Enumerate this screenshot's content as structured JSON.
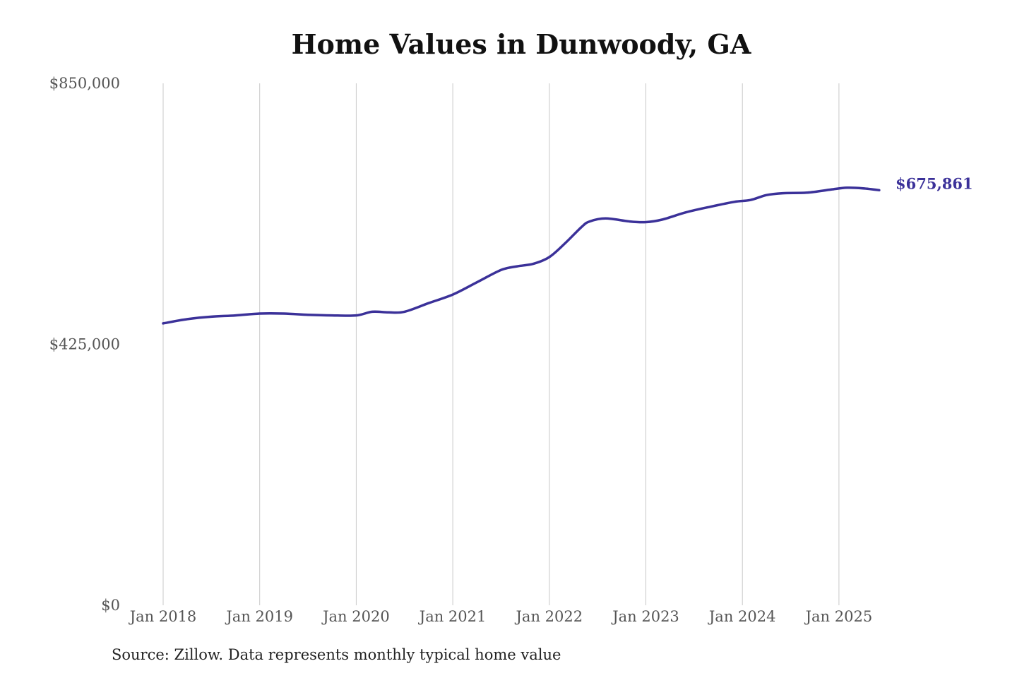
{
  "chart_data": {
    "type": "line",
    "title": "Home Values in Dunwoody, GA",
    "xlabel": "",
    "ylabel": "",
    "ylim": [
      0,
      850000
    ],
    "xlim": [
      "2018-01",
      "2025-06"
    ],
    "y_ticks": [
      {
        "value": 0,
        "label": "$0"
      },
      {
        "value": 425000,
        "label": "$425,000"
      },
      {
        "value": 850000,
        "label": "$850,000"
      }
    ],
    "x_ticks": [
      {
        "value": "2018-01",
        "label": "Jan 2018"
      },
      {
        "value": "2019-01",
        "label": "Jan 2019"
      },
      {
        "value": "2020-01",
        "label": "Jan 2020"
      },
      {
        "value": "2021-01",
        "label": "Jan 2021"
      },
      {
        "value": "2022-01",
        "label": "Jan 2022"
      },
      {
        "value": "2023-01",
        "label": "Jan 2023"
      },
      {
        "value": "2024-01",
        "label": "Jan 2024"
      },
      {
        "value": "2025-01",
        "label": "Jan 2025"
      }
    ],
    "grid": {
      "vertical": true,
      "horizontal": false
    },
    "line_color": "#3b3199",
    "grid_color": "#c8c8c8",
    "end_label": "$675,861",
    "series": [
      {
        "x": [
          "2018-01",
          "2018-04",
          "2018-07",
          "2018-10",
          "2019-01",
          "2019-04",
          "2019-07",
          "2019-10",
          "2020-01",
          "2020-03",
          "2020-05",
          "2020-07",
          "2020-10",
          "2021-01",
          "2021-04",
          "2021-07",
          "2021-09",
          "2021-11",
          "2022-01",
          "2022-03",
          "2022-05",
          "2022-06",
          "2022-08",
          "2022-11",
          "2023-01",
          "2023-03",
          "2023-06",
          "2023-09",
          "2023-12",
          "2024-02",
          "2024-04",
          "2024-06",
          "2024-09",
          "2024-12",
          "2025-02",
          "2025-04",
          "2025-06"
        ],
        "y": [
          459000,
          466000,
          470000,
          472000,
          475000,
          475000,
          473000,
          472000,
          472000,
          478000,
          477000,
          478000,
          492000,
          506000,
          526000,
          546000,
          552000,
          556000,
          567000,
          590000,
          616000,
          625000,
          630000,
          625000,
          624000,
          628000,
          640000,
          649000,
          657000,
          660000,
          668000,
          671000,
          672000,
          677000,
          680000,
          679000,
          676000
        ]
      }
    ],
    "source_note": "Source: Zillow. Data represents monthly typical home value"
  }
}
